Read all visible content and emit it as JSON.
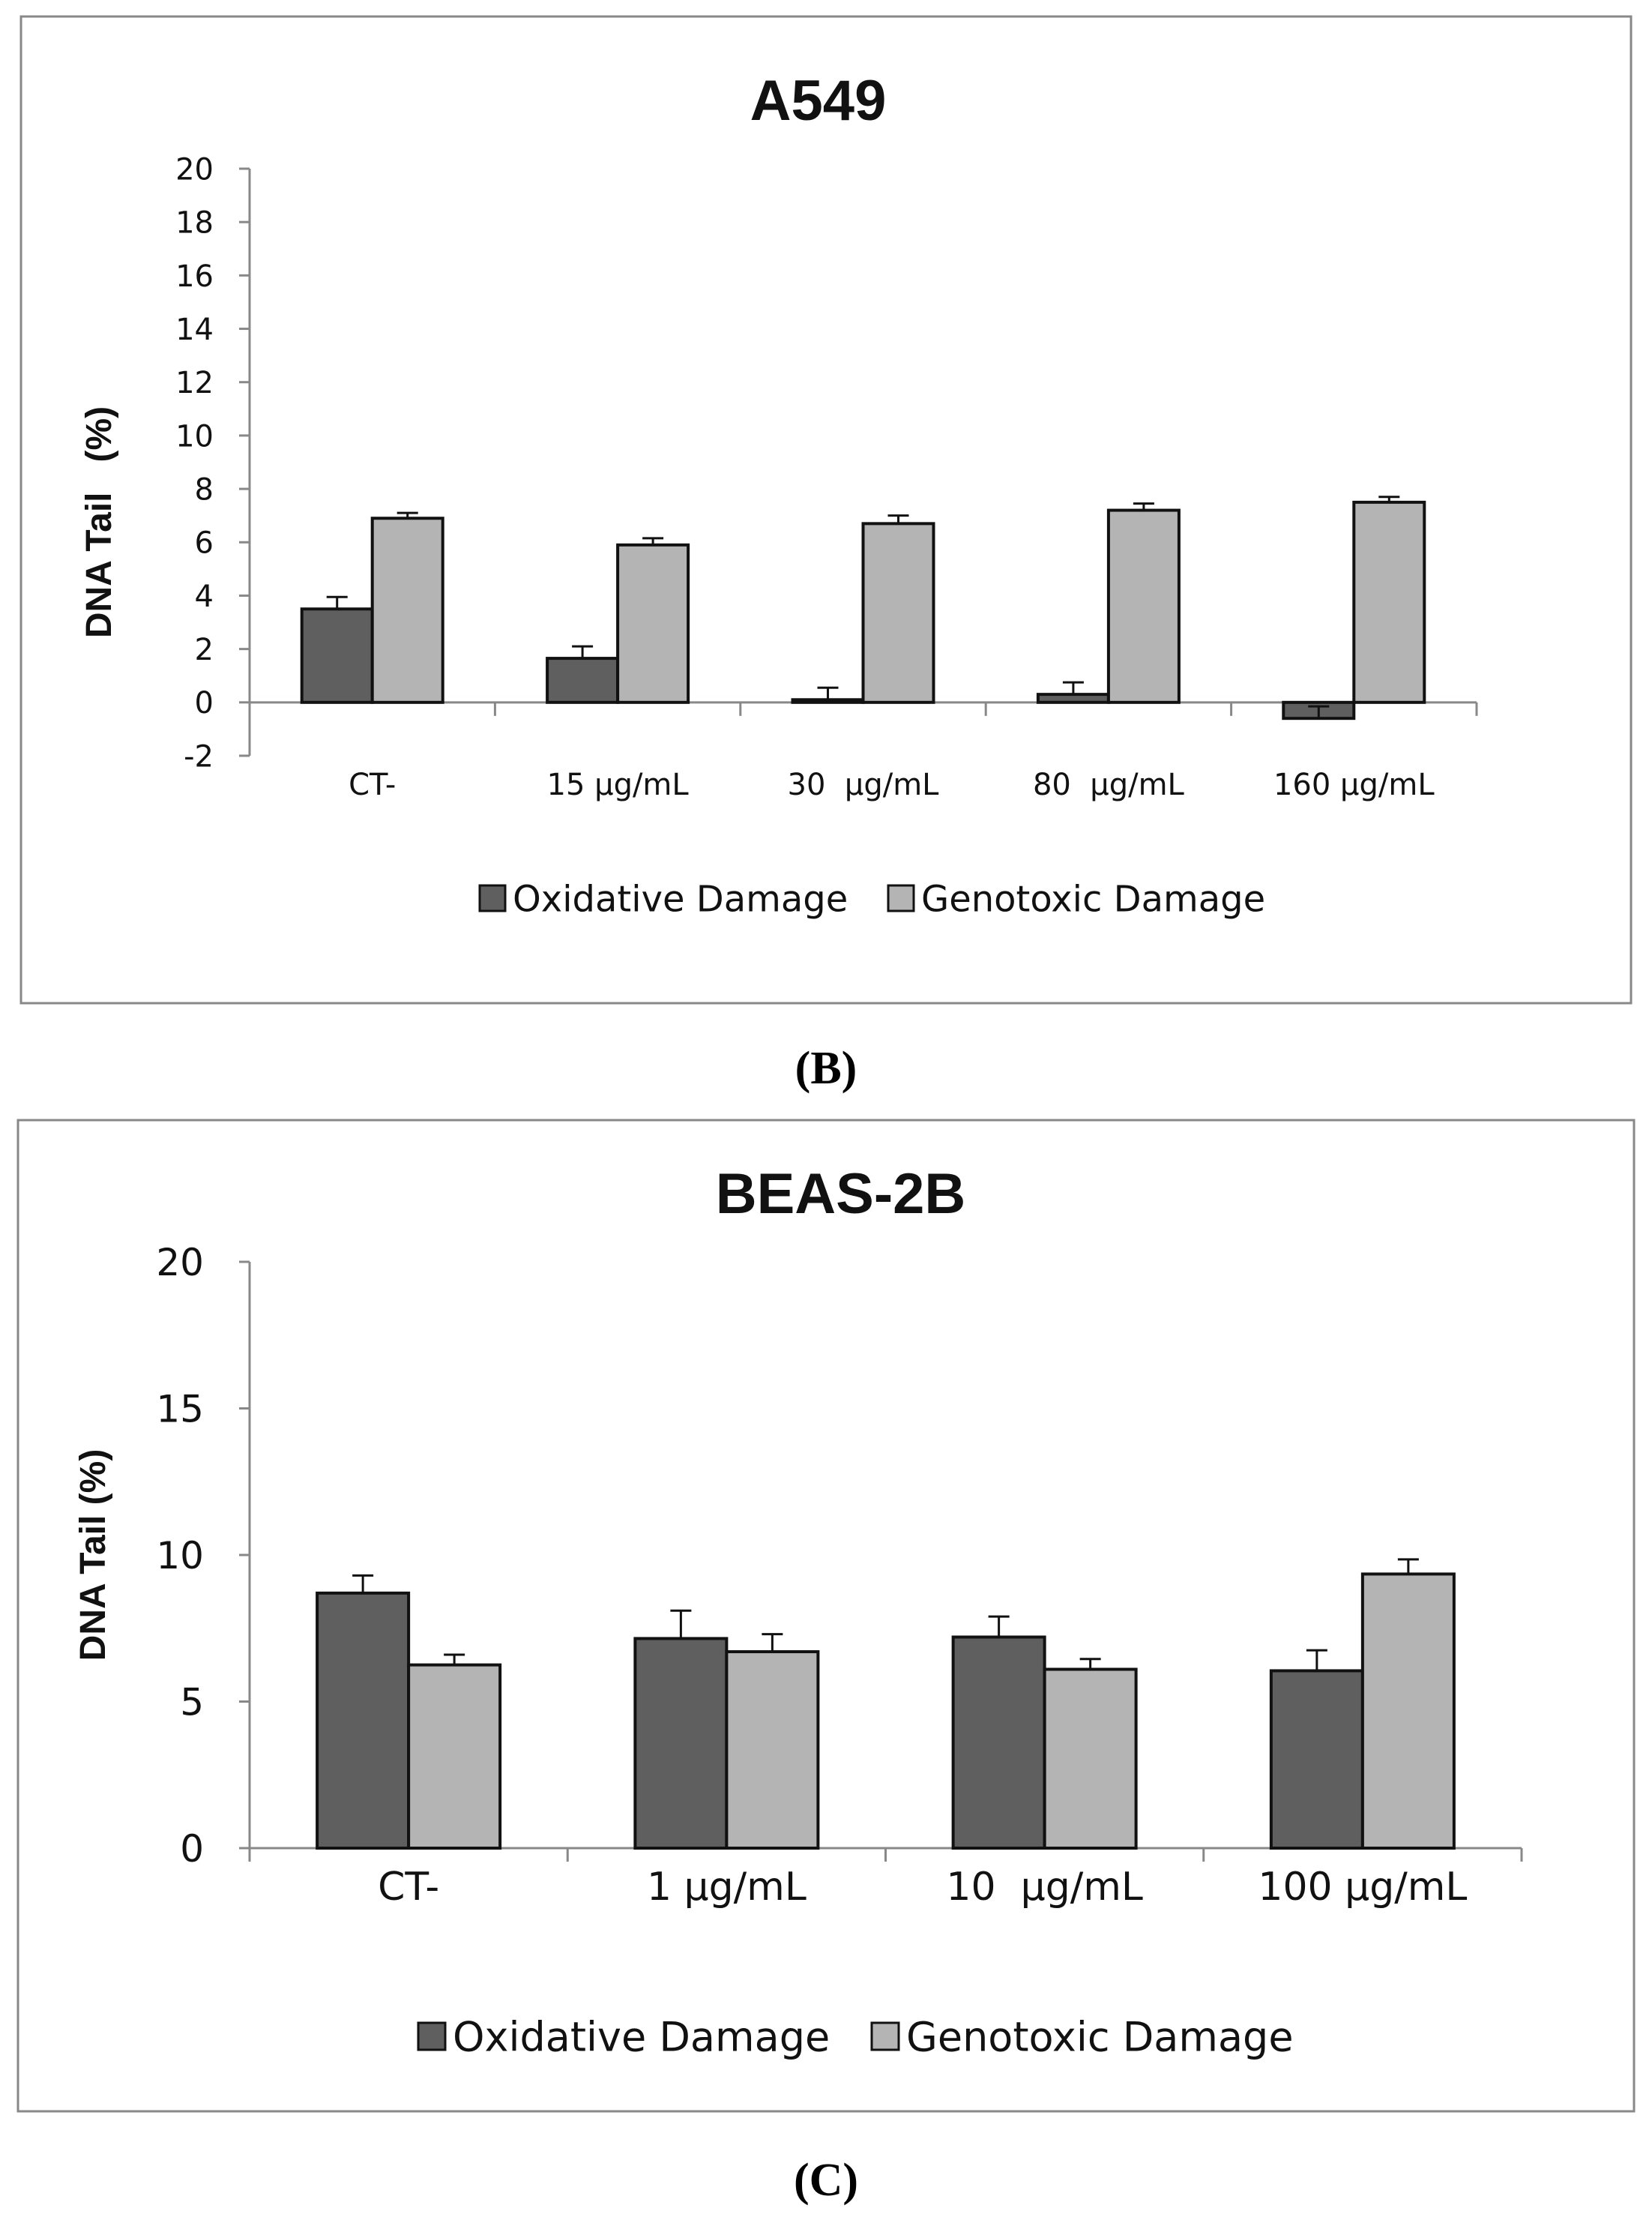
{
  "colors": {
    "oxidative": "#5f5f5f",
    "genotoxic": "#b4b4b4",
    "outline": "#111111",
    "axis": "#888888",
    "frame": "#888888"
  },
  "panel_labels": [
    "(B)",
    "(C)"
  ],
  "chart_data": [
    {
      "type": "bar",
      "title": "A549",
      "ylabel": "DNA Tail   (%)",
      "xlabel": "",
      "ylim": [
        -2,
        20
      ],
      "yticks": [
        -2,
        0,
        2,
        4,
        6,
        8,
        10,
        12,
        14,
        16,
        18,
        20
      ],
      "categories": [
        "CT-",
        "15 µg/mL",
        "30  µg/mL",
        "80  µg/mL",
        "160 µg/mL"
      ],
      "series": [
        {
          "name": "Oxidative Damage",
          "values": [
            3.5,
            1.65,
            0.1,
            0.3,
            -0.6
          ],
          "errors": [
            0.45,
            0.45,
            0.45,
            0.45,
            0.45
          ]
        },
        {
          "name": "Genotoxic Damage",
          "values": [
            6.9,
            5.9,
            6.7,
            7.2,
            7.5
          ],
          "errors": [
            0.2,
            0.25,
            0.3,
            0.25,
            0.2
          ]
        }
      ],
      "legend": "bottom-center"
    },
    {
      "type": "bar",
      "title": "BEAS-2B",
      "ylabel": "DNA Tail (%)",
      "xlabel": "",
      "ylim": [
        0,
        20
      ],
      "yticks": [
        0,
        5,
        10,
        15,
        20
      ],
      "categories": [
        "CT-",
        "1 µg/mL",
        "10  µg/mL",
        "100 µg/mL"
      ],
      "series": [
        {
          "name": "Oxidative Damage",
          "values": [
            8.7,
            7.15,
            7.2,
            6.05
          ],
          "errors": [
            0.6,
            0.95,
            0.7,
            0.7
          ]
        },
        {
          "name": "Genotoxic Damage",
          "values": [
            6.25,
            6.7,
            6.1,
            9.35
          ],
          "errors": [
            0.35,
            0.6,
            0.35,
            0.5
          ]
        }
      ],
      "legend": "bottom-center"
    }
  ]
}
